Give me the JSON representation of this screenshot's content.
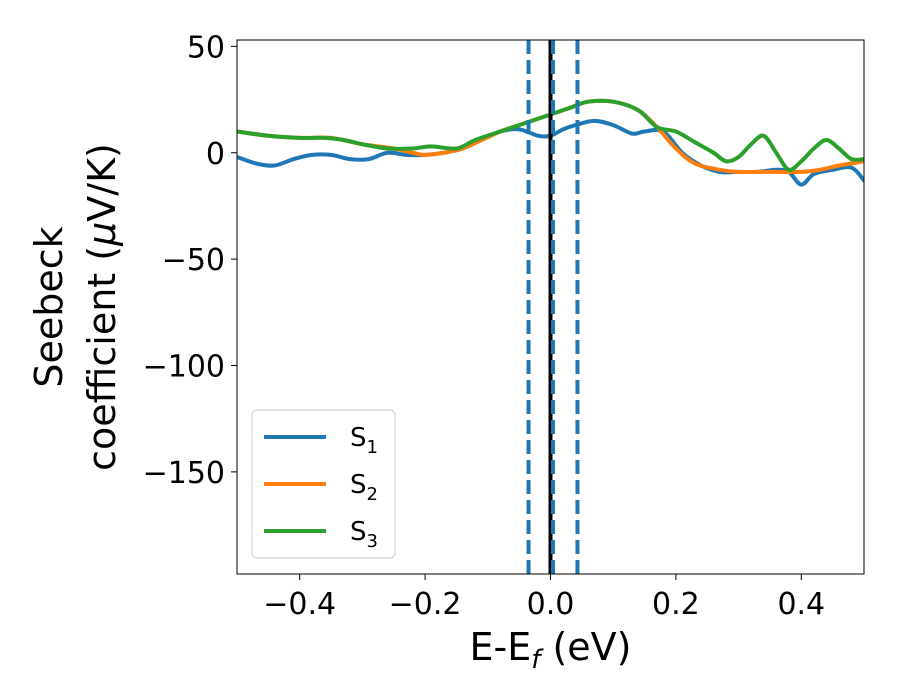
{
  "chart_data": {
    "type": "line",
    "title": "",
    "xlabel": "E-E",
    "xlabel_sub": "f",
    "xlabel_unit": " (eV)",
    "ylabel_line1": "Seebeck",
    "ylabel_line2_prefix": "coefficient  (",
    "ylabel_mu": "μ",
    "ylabel_line2_suffix": "V/K)",
    "xlim": [
      -0.5,
      0.5
    ],
    "ylim": [
      -198,
      53
    ],
    "xticks": [
      -0.4,
      -0.2,
      0.0,
      0.2,
      0.4
    ],
    "xtick_labels": [
      "−0.4",
      "−0.2",
      "0.0",
      "0.2",
      "0.4"
    ],
    "yticks": [
      50,
      0,
      -50,
      -100,
      -150
    ],
    "ytick_labels": [
      "50",
      "0",
      "−50",
      "−100",
      "−150"
    ],
    "grid": false,
    "legend_position": "lower-left",
    "vlines": [
      {
        "x": -0.035,
        "style": "dashed",
        "color": "#1f77b4"
      },
      {
        "x": 0.0,
        "style": "solid",
        "color": "#000000"
      },
      {
        "x": 0.004,
        "style": "dashed",
        "color": "#1f77b4"
      },
      {
        "x": 0.043,
        "style": "dashed",
        "color": "#1f77b4"
      }
    ],
    "series": [
      {
        "name": "S",
        "sub": "1",
        "color": "#1f77b4",
        "x": [
          -0.5,
          -0.47,
          -0.44,
          -0.41,
          -0.38,
          -0.35,
          -0.32,
          -0.29,
          -0.26,
          -0.23,
          -0.2,
          -0.17,
          -0.14,
          -0.11,
          -0.08,
          -0.05,
          -0.02,
          0.0,
          0.02,
          0.04,
          0.07,
          0.1,
          0.13,
          0.15,
          0.18,
          0.21,
          0.24,
          0.27,
          0.3,
          0.33,
          0.36,
          0.38,
          0.4,
          0.42,
          0.45,
          0.48,
          0.5
        ],
        "y": [
          -2,
          -5,
          -6,
          -3,
          -1,
          -1,
          -3,
          -3,
          0,
          -1,
          -1,
          0,
          2,
          6,
          10,
          11,
          8,
          8,
          11,
          13,
          15,
          13,
          9,
          10,
          10,
          0,
          -6,
          -9,
          -9,
          -9,
          -8,
          -9,
          -15,
          -10,
          -8,
          -7,
          -13
        ]
      },
      {
        "name": "S",
        "sub": "2",
        "color": "#ff7f0e",
        "x": [
          -0.5,
          -0.45,
          -0.4,
          -0.35,
          -0.3,
          -0.25,
          -0.22,
          -0.2,
          -0.17,
          -0.14,
          -0.11,
          -0.08,
          -0.05,
          -0.02,
          0.0,
          0.03,
          0.06,
          0.1,
          0.14,
          0.17,
          0.2,
          0.23,
          0.27,
          0.3,
          0.33,
          0.36,
          0.4,
          0.43,
          0.46,
          0.5
        ],
        "y": [
          10,
          8,
          7,
          7,
          4,
          2,
          0,
          -1,
          0,
          2,
          6,
          10,
          13,
          16,
          18,
          21,
          24,
          24,
          20,
          12,
          2,
          -5,
          -8,
          -9,
          -9,
          -9,
          -9,
          -8,
          -6,
          -4
        ]
      },
      {
        "name": "S",
        "sub": "3",
        "color": "#2ca02c",
        "x": [
          -0.5,
          -0.45,
          -0.4,
          -0.36,
          -0.33,
          -0.3,
          -0.26,
          -0.22,
          -0.19,
          -0.15,
          -0.12,
          -0.08,
          -0.05,
          -0.02,
          0.0,
          0.03,
          0.06,
          0.1,
          0.14,
          0.17,
          0.2,
          0.23,
          0.26,
          0.28,
          0.3,
          0.32,
          0.34,
          0.36,
          0.38,
          0.4,
          0.42,
          0.44,
          0.46,
          0.48,
          0.5
        ],
        "y": [
          10,
          8,
          7,
          7,
          6,
          4,
          2,
          2,
          3,
          2,
          6,
          10,
          13,
          16,
          18,
          21,
          24,
          24,
          20,
          12,
          10,
          5,
          0,
          -4,
          -2,
          4,
          8,
          0,
          -8,
          -4,
          2,
          6,
          2,
          -3,
          -3
        ]
      }
    ]
  }
}
